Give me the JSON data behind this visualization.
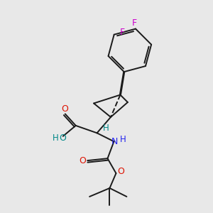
{
  "bg_color": "#e8e8e8",
  "bond_color": "#1a1a1a",
  "oxygen_color": "#dd1100",
  "nitrogen_color": "#2222ee",
  "fluorine_color": "#cc00cc",
  "ho_color": "#008888",
  "h_color": "#008888",
  "figsize": [
    3.0,
    3.0
  ],
  "dpi": 100,
  "xlim": [
    0,
    10
  ],
  "ylim": [
    0,
    10
  ]
}
